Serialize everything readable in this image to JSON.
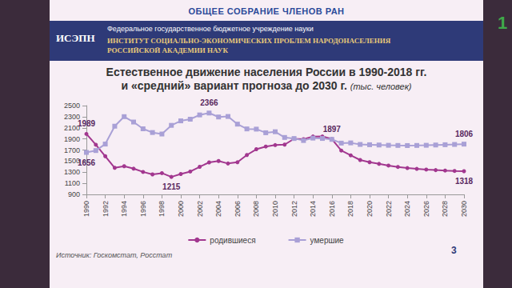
{
  "slide": {
    "header": "ОБЩЕЕ СОБРАНИЕ ЧЛЕНОВ РАН",
    "logo": "ИСЭПН",
    "org_type": "Федеральное государственное бюджетное учреждение науки",
    "institute": [
      "ИНСТИТУТ СОЦИАЛЬНО-ЭКОНОМИЧЕСКИХ ПРОБЛЕМ НАРОДОНАСЕЛЕНИЯ",
      "РОССИЙСКОЙ АКАДЕМИИ НАУК"
    ],
    "source": "Источник: Госкомстат, Росстат",
    "page": "3",
    "badge": "1"
  },
  "chart_data": {
    "type": "line",
    "title": [
      "Естественное движение населения России в 1990-2018 гг.",
      "и «средний» вариант прогноза до 2030 г."
    ],
    "subtitle": "(тыс. человек)",
    "x": [
      1990,
      1991,
      1992,
      1993,
      1994,
      1995,
      1996,
      1997,
      1998,
      1999,
      2000,
      2001,
      2002,
      2003,
      2004,
      2005,
      2006,
      2007,
      2008,
      2009,
      2010,
      2011,
      2012,
      2013,
      2014,
      2015,
      2016,
      2017,
      2018,
      2019,
      2020,
      2021,
      2022,
      2023,
      2024,
      2025,
      2026,
      2027,
      2028,
      2029,
      2030
    ],
    "series": [
      {
        "name": "родившиеся",
        "color": "#a2378f",
        "marker": "circle",
        "values": [
          1989,
          1795,
          1588,
          1379,
          1408,
          1364,
          1305,
          1260,
          1283,
          1215,
          1267,
          1312,
          1397,
          1477,
          1502,
          1457,
          1479,
          1610,
          1714,
          1762,
          1789,
          1797,
          1902,
          1896,
          1943,
          1944,
          1897,
          1690,
          1604,
          1520,
          1480,
          1450,
          1420,
          1395,
          1375,
          1360,
          1348,
          1338,
          1330,
          1323,
          1318
        ]
      },
      {
        "name": "умершие",
        "color": "#a9a0d6",
        "marker": "rect",
        "values": [
          1656,
          1690,
          1807,
          2129,
          2301,
          2204,
          2082,
          2015,
          1988,
          2144,
          2225,
          2255,
          2332,
          2366,
          2295,
          2304,
          2166,
          2080,
          2076,
          2011,
          2029,
          1926,
          1907,
          1871,
          1914,
          1908,
          1891,
          1824,
          1828,
          1800,
          1795,
          1790,
          1785,
          1782,
          1780,
          1782,
          1785,
          1790,
          1795,
          1800,
          1806
        ]
      }
    ],
    "annotations": [
      {
        "series": "родившиеся",
        "x": 1990,
        "text": "1989"
      },
      {
        "series": "умершие",
        "x": 1990,
        "text": "1656"
      },
      {
        "series": "родившиеся",
        "x": 1999,
        "text": "1215"
      },
      {
        "series": "умершие",
        "x": 2003,
        "text": "2366"
      },
      {
        "series": "родившиеся",
        "x": 2016,
        "text": "1897"
      },
      {
        "series": "родившиеся",
        "x": 2030,
        "text": "1318"
      },
      {
        "series": "умершие",
        "x": 2030,
        "text": "1806"
      }
    ],
    "xlim": [
      1990,
      2030
    ],
    "xticks": [
      1990,
      1992,
      1994,
      1996,
      1998,
      2000,
      2002,
      2004,
      2006,
      2008,
      2010,
      2012,
      2014,
      2016,
      2018,
      2020,
      2022,
      2024,
      2026,
      2028,
      2030
    ],
    "ylim": [
      900,
      2500
    ],
    "yticks": [
      900,
      1100,
      1300,
      1500,
      1700,
      1900,
      2100,
      2300,
      2500
    ],
    "grid": false,
    "legend": "bottom"
  }
}
